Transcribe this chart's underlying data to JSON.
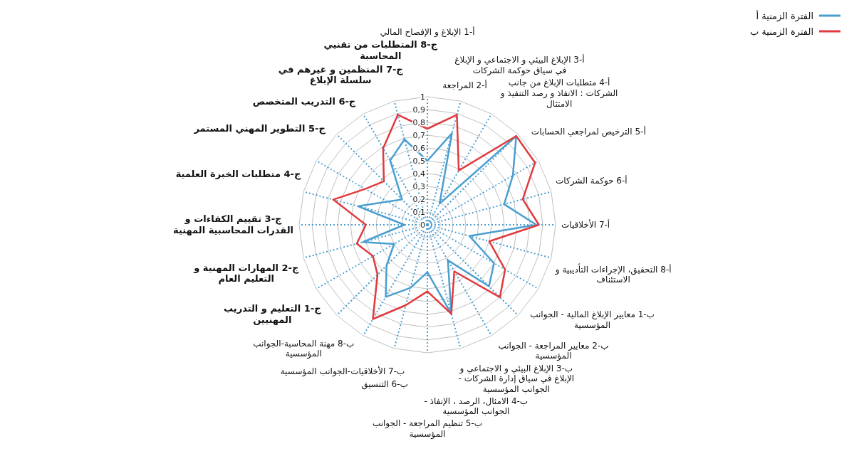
{
  "chart_data": {
    "type": "radar",
    "categories": [
      "أ-1 الإبلاغ و الإفصاح المالي",
      "أ-2 المراجعة",
      "أ-3 الإبلاغ البيئي و الاجتماعي و الإبلاغ في سياق حوكمة الشركات",
      "أ-4 متطلبات الإبلاغ من جانب الشركات : الانفاذ و رصد التنفيذ و الامتثال",
      "أ-5 الترخيص لمراجعي الحسابات",
      "أ-6 حوكمة الشركات",
      "أ-7 الأخلاقيات",
      "أ-8 التحقيق، الإجراءات التأديبية و الاستئناف",
      "ب-1 معايير الإبلاغ المالية - الجوانب المؤسسية",
      "ب-2 معايير المراجعة - الجوانب المؤسسية",
      "ب-3 الإبلاغ البيئي و الاجتماعي و الإبلاغ في سياق إدارة الشركات - الجوانب المؤسسية",
      "ب-4 الامثال، الرصد ، الإنفاذ - الجوانب المؤسسية",
      "ب-5 تنظيم المراجعة - الجوانب المؤسسية",
      "ب-6 التنسيق",
      "ب-7 الأخلاقيات-الجوانب المؤسسية",
      "ب-8 مهنة المحاسبة-الجوانب المؤسسية",
      "ج-1 التعليم و التدريب المهنيين",
      "ج-2 المهارات المهنية و التعليم العام",
      "ج-3 تقييم الكفاءات و القدرات المحاسبية المهنية",
      "ج-4 متطلبات الخبرة العلمية",
      "ج-5 التطوير المهني المستمر",
      "ج-6 التدريب المتخصص",
      "ج-7 المنظمين و غيرهم في سلسلة الإبلاغ",
      "ج-8 المتطلبات من تقنيي المحاسبة"
    ],
    "series": [
      {
        "name": "الفترة الزمنية أ",
        "color": "#4a9fd0",
        "values": [
          0.5,
          0.74,
          0.19,
          0.98,
          0.77,
          0.62,
          0.85,
          0.34,
          0.6,
          0.68,
          0.32,
          0.72,
          0.37,
          0.51,
          0.65,
          0.45,
          0.3,
          0.52,
          0.18,
          0.56,
          0.36,
          0.28,
          0.58,
          0.69
        ]
      },
      {
        "name": "الفترة الزمنية ب",
        "color": "#e03a3e",
        "values": [
          0.75,
          0.89,
          0.49,
          0.98,
          0.97,
          0.77,
          0.87,
          0.5,
          0.7,
          0.8,
          0.42,
          0.72,
          0.52,
          0.65,
          0.85,
          0.55,
          0.49,
          0.57,
          0.48,
          0.76,
          0.56,
          0.48,
          0.69,
          0.89
        ]
      }
    ],
    "ylim": [
      0,
      1
    ],
    "yticks": [
      0,
      {
        "value": 0.1,
        "label": "0,1"
      },
      {
        "value": 0.2,
        "label": "0,2"
      },
      {
        "value": 0.3,
        "label": "0,3"
      },
      {
        "value": 0.4,
        "label": "0,4"
      },
      {
        "value": 0.5,
        "label": "0,5"
      },
      {
        "value": 0.6,
        "label": "0,6"
      },
      {
        "value": 0.7,
        "label": "0,7"
      },
      {
        "value": 0.8,
        "label": "0,8"
      },
      {
        "value": 0.9,
        "label": "0,9"
      },
      1
    ],
    "grid": true,
    "legend": "top right"
  }
}
